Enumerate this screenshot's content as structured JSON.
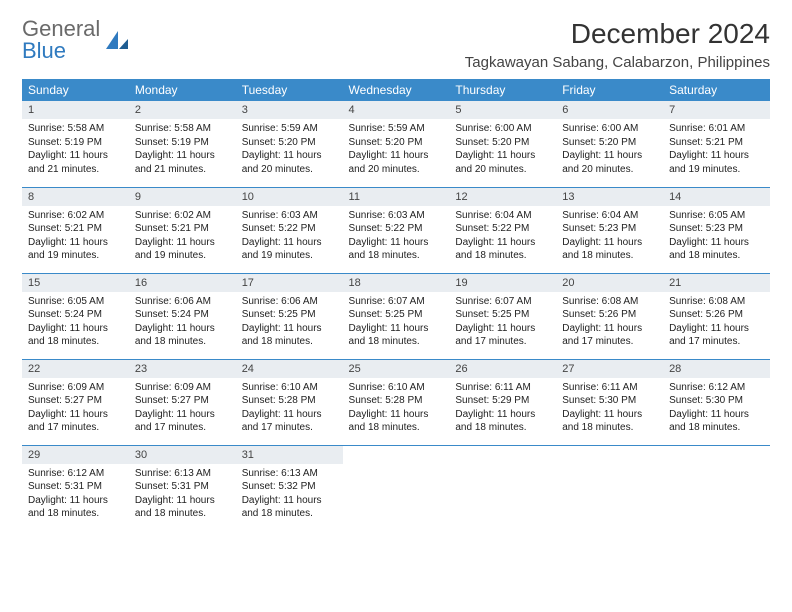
{
  "brand": {
    "part1": "General",
    "part2": "Blue"
  },
  "title": "December 2024",
  "location": "Tagkawayan Sabang, Calabarzon, Philippines",
  "colors": {
    "header_bg": "#3a8ac9",
    "header_text": "#ffffff",
    "daynum_bg": "#e9edf1",
    "row_border": "#3a8ac9",
    "logo_gray": "#6a6a6a",
    "logo_blue": "#2f7abf"
  },
  "dayHeaders": [
    "Sunday",
    "Monday",
    "Tuesday",
    "Wednesday",
    "Thursday",
    "Friday",
    "Saturday"
  ],
  "weeks": [
    [
      {
        "n": "1",
        "sr": "5:58 AM",
        "ss": "5:19 PM",
        "dl": "11 hours and 21 minutes."
      },
      {
        "n": "2",
        "sr": "5:58 AM",
        "ss": "5:19 PM",
        "dl": "11 hours and 21 minutes."
      },
      {
        "n": "3",
        "sr": "5:59 AM",
        "ss": "5:20 PM",
        "dl": "11 hours and 20 minutes."
      },
      {
        "n": "4",
        "sr": "5:59 AM",
        "ss": "5:20 PM",
        "dl": "11 hours and 20 minutes."
      },
      {
        "n": "5",
        "sr": "6:00 AM",
        "ss": "5:20 PM",
        "dl": "11 hours and 20 minutes."
      },
      {
        "n": "6",
        "sr": "6:00 AM",
        "ss": "5:20 PM",
        "dl": "11 hours and 20 minutes."
      },
      {
        "n": "7",
        "sr": "6:01 AM",
        "ss": "5:21 PM",
        "dl": "11 hours and 19 minutes."
      }
    ],
    [
      {
        "n": "8",
        "sr": "6:02 AM",
        "ss": "5:21 PM",
        "dl": "11 hours and 19 minutes."
      },
      {
        "n": "9",
        "sr": "6:02 AM",
        "ss": "5:21 PM",
        "dl": "11 hours and 19 minutes."
      },
      {
        "n": "10",
        "sr": "6:03 AM",
        "ss": "5:22 PM",
        "dl": "11 hours and 19 minutes."
      },
      {
        "n": "11",
        "sr": "6:03 AM",
        "ss": "5:22 PM",
        "dl": "11 hours and 18 minutes."
      },
      {
        "n": "12",
        "sr": "6:04 AM",
        "ss": "5:22 PM",
        "dl": "11 hours and 18 minutes."
      },
      {
        "n": "13",
        "sr": "6:04 AM",
        "ss": "5:23 PM",
        "dl": "11 hours and 18 minutes."
      },
      {
        "n": "14",
        "sr": "6:05 AM",
        "ss": "5:23 PM",
        "dl": "11 hours and 18 minutes."
      }
    ],
    [
      {
        "n": "15",
        "sr": "6:05 AM",
        "ss": "5:24 PM",
        "dl": "11 hours and 18 minutes."
      },
      {
        "n": "16",
        "sr": "6:06 AM",
        "ss": "5:24 PM",
        "dl": "11 hours and 18 minutes."
      },
      {
        "n": "17",
        "sr": "6:06 AM",
        "ss": "5:25 PM",
        "dl": "11 hours and 18 minutes."
      },
      {
        "n": "18",
        "sr": "6:07 AM",
        "ss": "5:25 PM",
        "dl": "11 hours and 18 minutes."
      },
      {
        "n": "19",
        "sr": "6:07 AM",
        "ss": "5:25 PM",
        "dl": "11 hours and 17 minutes."
      },
      {
        "n": "20",
        "sr": "6:08 AM",
        "ss": "5:26 PM",
        "dl": "11 hours and 17 minutes."
      },
      {
        "n": "21",
        "sr": "6:08 AM",
        "ss": "5:26 PM",
        "dl": "11 hours and 17 minutes."
      }
    ],
    [
      {
        "n": "22",
        "sr": "6:09 AM",
        "ss": "5:27 PM",
        "dl": "11 hours and 17 minutes."
      },
      {
        "n": "23",
        "sr": "6:09 AM",
        "ss": "5:27 PM",
        "dl": "11 hours and 17 minutes."
      },
      {
        "n": "24",
        "sr": "6:10 AM",
        "ss": "5:28 PM",
        "dl": "11 hours and 17 minutes."
      },
      {
        "n": "25",
        "sr": "6:10 AM",
        "ss": "5:28 PM",
        "dl": "11 hours and 18 minutes."
      },
      {
        "n": "26",
        "sr": "6:11 AM",
        "ss": "5:29 PM",
        "dl": "11 hours and 18 minutes."
      },
      {
        "n": "27",
        "sr": "6:11 AM",
        "ss": "5:30 PM",
        "dl": "11 hours and 18 minutes."
      },
      {
        "n": "28",
        "sr": "6:12 AM",
        "ss": "5:30 PM",
        "dl": "11 hours and 18 minutes."
      }
    ],
    [
      {
        "n": "29",
        "sr": "6:12 AM",
        "ss": "5:31 PM",
        "dl": "11 hours and 18 minutes."
      },
      {
        "n": "30",
        "sr": "6:13 AM",
        "ss": "5:31 PM",
        "dl": "11 hours and 18 minutes."
      },
      {
        "n": "31",
        "sr": "6:13 AM",
        "ss": "5:32 PM",
        "dl": "11 hours and 18 minutes."
      },
      null,
      null,
      null,
      null
    ]
  ],
  "labels": {
    "sunrise": "Sunrise: ",
    "sunset": "Sunset: ",
    "daylight": "Daylight: "
  }
}
